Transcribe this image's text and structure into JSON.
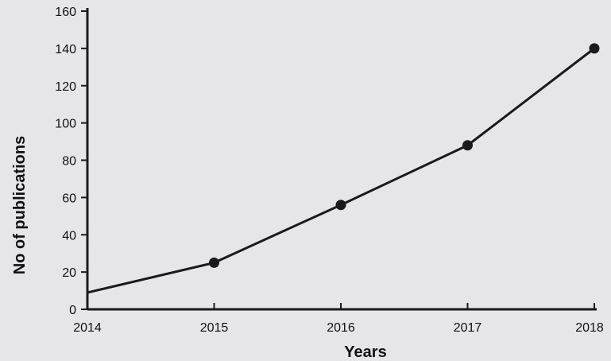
{
  "chart_data": {
    "type": "line",
    "title": "",
    "xlabel": "Years",
    "ylabel": "No of publications",
    "x": [
      2014,
      2015,
      2016,
      2017,
      2018
    ],
    "x_ticks": [
      "2014",
      "2015",
      "2016",
      "2017",
      "2018"
    ],
    "y_ticks": [
      0,
      20,
      40,
      60,
      80,
      100,
      120,
      140,
      160
    ],
    "ylim": [
      0,
      160
    ],
    "grid": false,
    "series": [
      {
        "values": [
          9,
          25,
          56,
          88,
          140
        ],
        "markers": [
          false,
          true,
          true,
          true,
          true
        ]
      }
    ],
    "colors": {
      "line": "#1a1a1a",
      "marker": "#1a1a1a",
      "axis": "#1a1a1a"
    }
  }
}
